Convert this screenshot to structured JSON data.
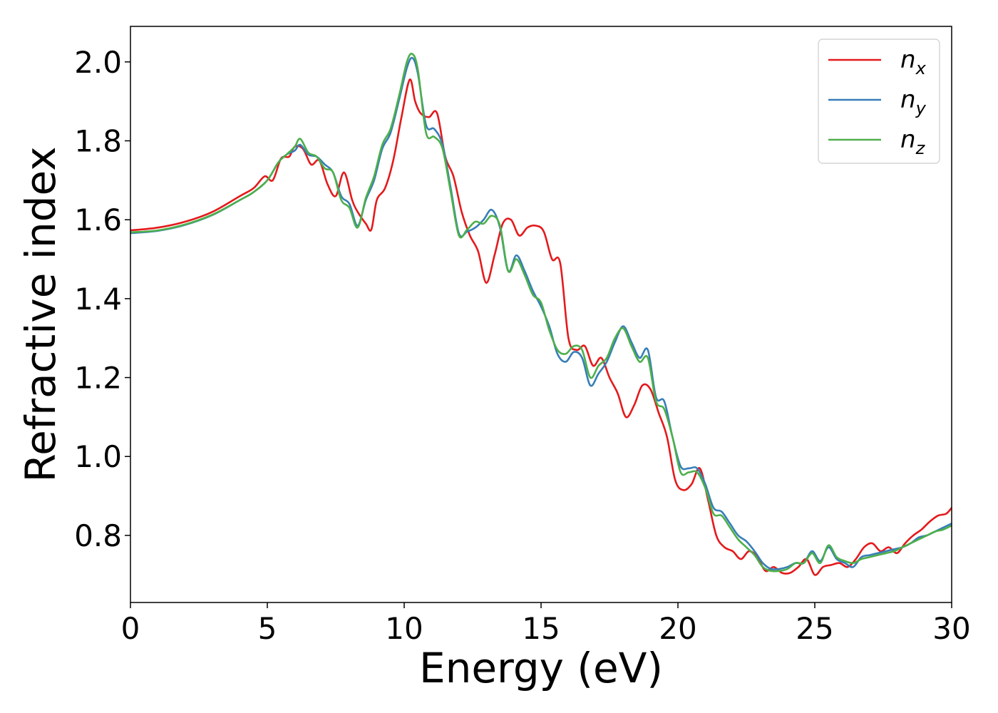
{
  "chart_data": {
    "type": "line",
    "xlabel": "Energy (eV)",
    "ylabel": "Refractive index",
    "xlim": [
      0,
      30
    ],
    "ylim": [
      0.63,
      2.09
    ],
    "xticks": [
      0,
      5,
      10,
      15,
      20,
      25,
      30
    ],
    "xtick_labels": [
      "0",
      "5",
      "10",
      "15",
      "20",
      "25",
      "30"
    ],
    "yticks": [
      0.8,
      1.0,
      1.2,
      1.4,
      1.6,
      1.8,
      2.0
    ],
    "ytick_labels": [
      "0.8",
      "1.0",
      "1.2",
      "1.4",
      "1.6",
      "1.8",
      "2.0"
    ],
    "grid": false,
    "legend_position": "top-right",
    "series": [
      {
        "name": "n",
        "subscript": "x",
        "color": "#e41a1c",
        "x": [
          0,
          1,
          2,
          3,
          4,
          4.5,
          4.9,
          5.2,
          5.5,
          5.8,
          6.0,
          6.3,
          6.6,
          6.9,
          7.2,
          7.5,
          7.8,
          8.1,
          8.3,
          8.6,
          8.8,
          9.0,
          9.3,
          9.6,
          9.9,
          10.2,
          10.4,
          10.6,
          10.9,
          11.2,
          11.5,
          11.8,
          12.1,
          12.4,
          12.7,
          13.0,
          13.3,
          13.6,
          13.9,
          14.2,
          14.5,
          14.8,
          15.1,
          15.4,
          15.7,
          16.0,
          16.3,
          16.6,
          16.9,
          17.2,
          17.5,
          17.8,
          18.1,
          18.4,
          18.7,
          19.0,
          19.3,
          19.6,
          19.9,
          20.2,
          20.5,
          20.8,
          21.1,
          21.4,
          21.7,
          22.0,
          22.3,
          22.6,
          22.9,
          23.2,
          23.5,
          23.8,
          24.1,
          24.4,
          24.7,
          25.0,
          25.3,
          25.6,
          25.9,
          26.2,
          26.5,
          26.8,
          27.1,
          27.4,
          27.7,
          28.0,
          28.3,
          28.6,
          28.9,
          29.2,
          29.5,
          29.8,
          30.0
        ],
        "y": [
          1.573,
          1.58,
          1.595,
          1.62,
          1.66,
          1.68,
          1.71,
          1.7,
          1.755,
          1.76,
          1.785,
          1.78,
          1.74,
          1.75,
          1.69,
          1.66,
          1.72,
          1.65,
          1.62,
          1.59,
          1.575,
          1.65,
          1.68,
          1.75,
          1.86,
          1.955,
          1.9,
          1.87,
          1.86,
          1.87,
          1.76,
          1.71,
          1.62,
          1.56,
          1.52,
          1.44,
          1.51,
          1.59,
          1.6,
          1.56,
          1.58,
          1.585,
          1.57,
          1.5,
          1.49,
          1.3,
          1.27,
          1.28,
          1.23,
          1.25,
          1.2,
          1.16,
          1.1,
          1.13,
          1.18,
          1.17,
          1.11,
          1.05,
          0.94,
          0.915,
          0.93,
          0.97,
          0.89,
          0.8,
          0.77,
          0.76,
          0.74,
          0.76,
          0.745,
          0.71,
          0.72,
          0.705,
          0.705,
          0.72,
          0.74,
          0.7,
          0.72,
          0.725,
          0.73,
          0.72,
          0.74,
          0.77,
          0.78,
          0.76,
          0.77,
          0.755,
          0.78,
          0.8,
          0.815,
          0.835,
          0.85,
          0.855,
          0.87
        ]
      },
      {
        "name": "n",
        "subscript": "y",
        "color": "#377eb8",
        "x": [
          0,
          1,
          2,
          3,
          4,
          4.5,
          5.0,
          5.4,
          5.7,
          6.0,
          6.2,
          6.5,
          6.8,
          7.1,
          7.4,
          7.7,
          8.0,
          8.3,
          8.6,
          8.9,
          9.2,
          9.5,
          9.8,
          10.1,
          10.3,
          10.5,
          10.8,
          11.1,
          11.4,
          11.7,
          12.0,
          12.3,
          12.6,
          12.9,
          13.2,
          13.5,
          13.8,
          14.1,
          14.4,
          14.7,
          15.0,
          15.3,
          15.6,
          15.9,
          16.2,
          16.5,
          16.8,
          17.1,
          17.4,
          17.7,
          18.0,
          18.3,
          18.6,
          18.9,
          19.2,
          19.5,
          19.8,
          20.1,
          20.4,
          20.7,
          21.0,
          21.3,
          21.6,
          21.9,
          22.2,
          22.5,
          22.8,
          23.1,
          23.4,
          23.7,
          24.0,
          24.3,
          24.6,
          24.9,
          25.2,
          25.5,
          25.8,
          26.1,
          26.4,
          26.7,
          27.0,
          27.3,
          27.6,
          27.9,
          28.2,
          28.5,
          28.8,
          29.1,
          29.4,
          29.7,
          30.0
        ],
        "y": [
          1.566,
          1.572,
          1.587,
          1.612,
          1.65,
          1.67,
          1.7,
          1.745,
          1.765,
          1.775,
          1.79,
          1.765,
          1.76,
          1.74,
          1.72,
          1.66,
          1.64,
          1.585,
          1.65,
          1.7,
          1.78,
          1.82,
          1.9,
          1.985,
          2.01,
          1.97,
          1.84,
          1.83,
          1.79,
          1.68,
          1.565,
          1.57,
          1.58,
          1.6,
          1.625,
          1.58,
          1.47,
          1.51,
          1.47,
          1.42,
          1.38,
          1.33,
          1.26,
          1.24,
          1.265,
          1.25,
          1.18,
          1.21,
          1.24,
          1.29,
          1.33,
          1.29,
          1.25,
          1.27,
          1.15,
          1.14,
          1.05,
          0.975,
          0.97,
          0.97,
          0.93,
          0.87,
          0.86,
          0.83,
          0.8,
          0.785,
          0.76,
          0.73,
          0.715,
          0.715,
          0.72,
          0.73,
          0.73,
          0.76,
          0.735,
          0.77,
          0.74,
          0.73,
          0.72,
          0.745,
          0.75,
          0.755,
          0.76,
          0.765,
          0.77,
          0.78,
          0.795,
          0.8,
          0.81,
          0.82,
          0.83
        ]
      },
      {
        "name": "n",
        "subscript": "z",
        "color": "#4daf4a",
        "x": [
          0,
          1,
          2,
          3,
          4,
          4.5,
          5.0,
          5.4,
          5.7,
          6.0,
          6.2,
          6.5,
          6.8,
          7.1,
          7.4,
          7.7,
          8.0,
          8.3,
          8.6,
          8.9,
          9.2,
          9.5,
          9.8,
          10.1,
          10.3,
          10.5,
          10.8,
          11.1,
          11.4,
          11.7,
          12.0,
          12.3,
          12.6,
          12.9,
          13.2,
          13.5,
          13.8,
          14.1,
          14.4,
          14.7,
          15.0,
          15.3,
          15.6,
          15.9,
          16.2,
          16.5,
          16.8,
          17.1,
          17.4,
          17.7,
          18.0,
          18.3,
          18.6,
          18.9,
          19.2,
          19.5,
          19.8,
          20.1,
          20.4,
          20.7,
          21.0,
          21.3,
          21.6,
          21.9,
          22.2,
          22.5,
          22.8,
          23.1,
          23.4,
          23.7,
          24.0,
          24.3,
          24.6,
          24.9,
          25.2,
          25.5,
          25.8,
          26.1,
          26.4,
          26.7,
          27.0,
          27.3,
          27.6,
          27.9,
          28.2,
          28.5,
          28.8,
          29.1,
          29.4,
          29.7,
          30.0
        ],
        "y": [
          1.568,
          1.573,
          1.588,
          1.613,
          1.65,
          1.67,
          1.7,
          1.745,
          1.765,
          1.785,
          1.805,
          1.77,
          1.76,
          1.73,
          1.72,
          1.65,
          1.63,
          1.58,
          1.655,
          1.71,
          1.79,
          1.83,
          1.91,
          2.0,
          2.02,
          1.98,
          1.82,
          1.81,
          1.78,
          1.67,
          1.56,
          1.575,
          1.595,
          1.59,
          1.61,
          1.585,
          1.47,
          1.5,
          1.46,
          1.41,
          1.39,
          1.32,
          1.27,
          1.26,
          1.28,
          1.27,
          1.2,
          1.23,
          1.25,
          1.3,
          1.325,
          1.28,
          1.24,
          1.25,
          1.14,
          1.12,
          1.05,
          0.96,
          0.96,
          0.96,
          0.92,
          0.855,
          0.85,
          0.82,
          0.79,
          0.77,
          0.75,
          0.72,
          0.71,
          0.71,
          0.715,
          0.73,
          0.73,
          0.755,
          0.73,
          0.775,
          0.745,
          0.735,
          0.73,
          0.74,
          0.745,
          0.75,
          0.755,
          0.76,
          0.77,
          0.78,
          0.79,
          0.8,
          0.81,
          0.815,
          0.825
        ]
      }
    ]
  }
}
